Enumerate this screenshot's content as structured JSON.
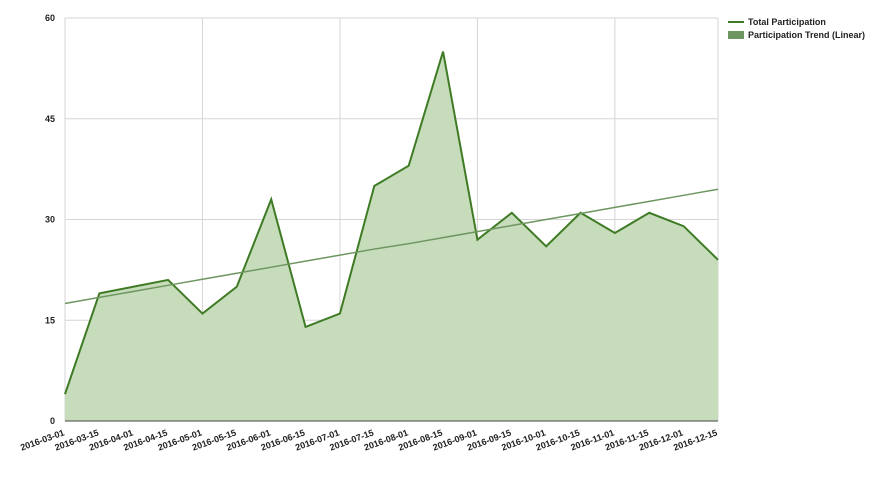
{
  "chart_data": {
    "type": "area",
    "categories": [
      "2016-03-01",
      "2016-03-15",
      "2016-04-01",
      "2016-04-15",
      "2016-05-01",
      "2016-05-15",
      "2016-06-01",
      "2016-06-15",
      "2016-07-01",
      "2016-07-15",
      "2016-08-01",
      "2016-08-15",
      "2016-09-01",
      "2016-09-15",
      "2016-10-01",
      "2016-10-15",
      "2016-11-01",
      "2016-11-15",
      "2016-12-01",
      "2016-12-15"
    ],
    "series": [
      {
        "name": "Total Participation",
        "color": "#3f7b25",
        "fill": "#c6dcbb",
        "values": [
          4,
          19,
          20,
          21,
          16,
          20,
          33,
          14,
          16,
          35,
          38,
          55,
          27,
          31,
          26,
          31,
          28,
          31,
          29,
          24
        ]
      },
      {
        "name": "Participation Trend (Linear)",
        "color": "#6e9660",
        "values": [
          17.5,
          18.4,
          19.3,
          20.2,
          21.1,
          22.0,
          22.9,
          23.8,
          24.7,
          25.6,
          26.4,
          27.3,
          28.2,
          29.1,
          30.0,
          30.9,
          31.8,
          32.7,
          33.6,
          34.5
        ]
      }
    ],
    "ylim": [
      0,
      60
    ],
    "yticks": [
      0,
      15,
      30,
      45,
      60
    ],
    "grid": true,
    "legend": "top-right"
  }
}
